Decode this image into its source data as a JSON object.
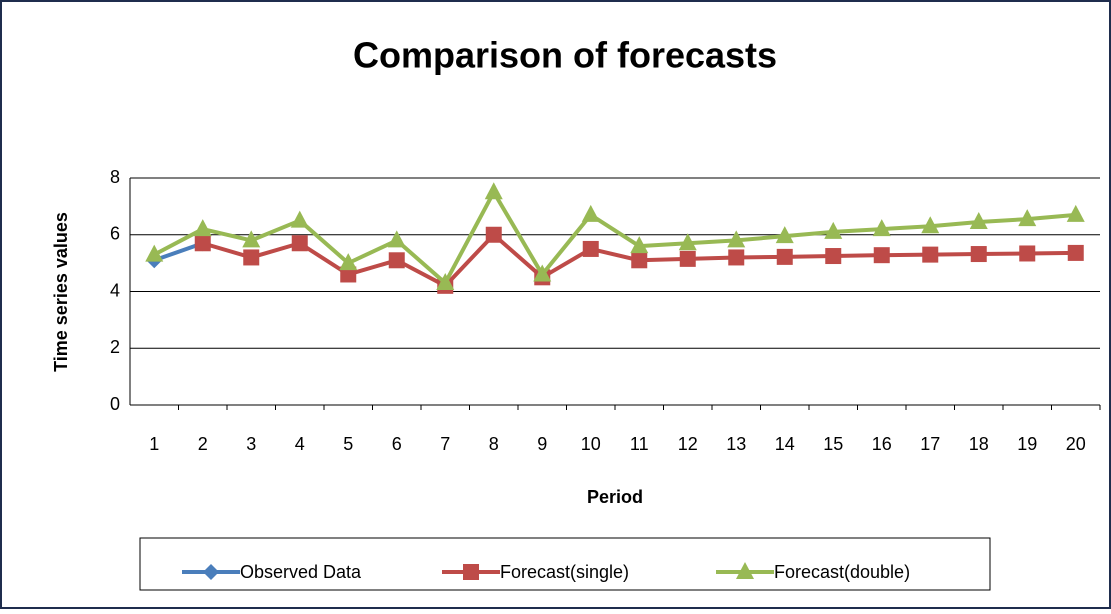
{
  "chart_data": {
    "type": "line",
    "title": "Comparison of forecasts",
    "x_label": "Period",
    "y_label": "Time series values",
    "categories": [
      1,
      2,
      3,
      4,
      5,
      6,
      7,
      8,
      9,
      10,
      11,
      12,
      13,
      14,
      15,
      16,
      17,
      18,
      19,
      20
    ],
    "series": [
      {
        "name": "Observed Data",
        "color": "#4a7ebb",
        "marker": "diamond",
        "values": [
          5.1,
          5.7,
          null,
          null,
          null,
          null,
          null,
          null,
          null,
          null,
          null,
          null,
          null,
          null,
          null,
          null,
          null,
          null,
          null,
          null
        ]
      },
      {
        "name": "Forecast(single)",
        "color": "#be4b48",
        "marker": "square",
        "values": [
          null,
          5.7,
          5.2,
          5.7,
          4.6,
          5.1,
          4.2,
          6.0,
          4.5,
          5.5,
          5.1,
          5.15,
          5.2,
          5.22,
          5.25,
          5.28,
          5.3,
          5.32,
          5.34,
          5.36
        ]
      },
      {
        "name": "Forecast(double)",
        "color": "#98b954",
        "marker": "triangle",
        "values": [
          5.3,
          6.2,
          5.8,
          6.5,
          5.0,
          5.8,
          4.3,
          7.5,
          4.6,
          6.7,
          5.6,
          5.7,
          5.8,
          5.95,
          6.1,
          6.2,
          6.3,
          6.45,
          6.55,
          6.7
        ]
      }
    ],
    "ylim": [
      0,
      8
    ],
    "yticks": [
      0,
      2,
      4,
      6,
      8
    ],
    "grid": true,
    "legend": "bottom"
  }
}
